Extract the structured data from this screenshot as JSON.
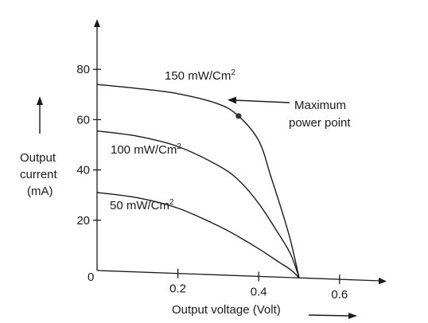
{
  "chart_data": {
    "type": "line",
    "xlabel": "Output voltage (Volt)",
    "ylabel": [
      "Output",
      "current",
      "(mA)"
    ],
    "origin_label": "0",
    "x_ticks": [
      0.2,
      0.4,
      0.6
    ],
    "x_tick_labels": [
      "0.2",
      "0.4",
      "0.6"
    ],
    "y_ticks": [
      20,
      40,
      60,
      80
    ],
    "y_tick_labels": [
      "20",
      "40",
      "60",
      "80"
    ],
    "xlim": [
      0,
      0.7
    ],
    "ylim": [
      0,
      95
    ],
    "grid": false,
    "series": [
      {
        "name": "150 mW/Cm",
        "name_sup": "2",
        "points": [
          [
            0,
            74
          ],
          [
            0.1,
            73
          ],
          [
            0.2,
            71.5
          ],
          [
            0.3,
            68
          ],
          [
            0.35,
            63.5
          ],
          [
            0.4,
            54
          ],
          [
            0.43,
            40
          ],
          [
            0.46,
            25
          ],
          [
            0.48,
            14
          ],
          [
            0.5,
            0
          ]
        ]
      },
      {
        "name": "100 mW/Cm",
        "name_sup": "2",
        "points": [
          [
            0,
            55.5
          ],
          [
            0.1,
            54
          ],
          [
            0.2,
            50.5
          ],
          [
            0.3,
            43.5
          ],
          [
            0.35,
            38
          ],
          [
            0.4,
            29
          ],
          [
            0.45,
            17
          ],
          [
            0.48,
            9
          ],
          [
            0.5,
            0
          ]
        ]
      },
      {
        "name": "50 mW/Cm",
        "name_sup": "2",
        "points": [
          [
            0,
            31
          ],
          [
            0.1,
            29.5
          ],
          [
            0.2,
            26
          ],
          [
            0.3,
            19.5
          ],
          [
            0.35,
            15.5
          ],
          [
            0.4,
            11
          ],
          [
            0.45,
            6
          ],
          [
            0.48,
            3
          ],
          [
            0.5,
            0
          ]
        ]
      }
    ],
    "annotation": {
      "lines": [
        "Maximum",
        "power point"
      ],
      "point": [
        0.35,
        63.5
      ]
    }
  }
}
